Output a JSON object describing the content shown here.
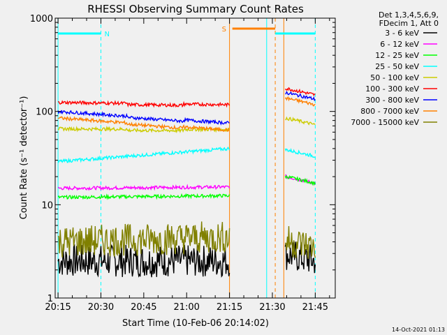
{
  "chart_data": {
    "type": "line",
    "title": "RHESSI Observing Summary Count Rates",
    "xlabel": "Start Time (10-Feb-06 20:14:02)",
    "ylabel": "Count Rate (s⁻¹ detector⁻¹)",
    "yscale": "log",
    "ylim": [
      1,
      1000
    ],
    "xlim_minutes": [
      0,
      98
    ],
    "x_tick_labels": [
      "20:15",
      "20:30",
      "20:45",
      "21:00",
      "21:15",
      "21:30",
      "21:45"
    ],
    "x_tick_minutes": [
      1,
      16,
      31,
      46,
      61,
      76,
      91
    ],
    "y_tick_labels": [
      "1",
      "10",
      "100",
      "1000"
    ],
    "y_tick_values": [
      1,
      10,
      100,
      1000
    ],
    "legend_header": [
      "Det 1,3,4,5,6,9,",
      "FDecim 1, Att 0"
    ],
    "legend_position": "right",
    "timestamp": "14-Oct-2021 01:13",
    "flag_labels": [
      "N",
      "S"
    ],
    "series": [
      {
        "name": "3 - 6 keV",
        "color": "#000000",
        "seg1_start": 2.5,
        "seg1_end": 2.5,
        "seg2": 2.5
      },
      {
        "name": "6 - 12 keV",
        "color": "#ff00ff",
        "seg1_start": 15,
        "seg1_end": 15.5,
        "seg2": 17
      },
      {
        "name": "12 - 25 keV",
        "color": "#00ff00",
        "seg1_start": 12,
        "seg1_end": 12.5,
        "seg2": 17
      },
      {
        "name": "25 - 50 keV",
        "color": "#00ffff",
        "seg1_start": 29,
        "seg1_end": 40,
        "seg2": 33
      },
      {
        "name": "50 - 100 keV",
        "color": "#cccc00",
        "seg1_start": 65,
        "seg1_end": 64,
        "seg2": 72
      },
      {
        "name": "100 - 300 keV",
        "color": "#ff0000",
        "seg1_start": 125,
        "seg1_end": 118,
        "seg2": 150
      },
      {
        "name": "300 - 800 keV",
        "color": "#0000ff",
        "seg1_start": 100,
        "seg1_end": 75,
        "seg2": 135
      },
      {
        "name": "800 - 7000 keV",
        "color": "#ff8000",
        "seg1_start": 85,
        "seg1_end": 63,
        "seg2": 118
      },
      {
        "name": "7000 - 15000 keV",
        "color": "#808000",
        "seg1_start": 4,
        "seg1_end": 4.5,
        "seg2": 3.5
      }
    ]
  }
}
